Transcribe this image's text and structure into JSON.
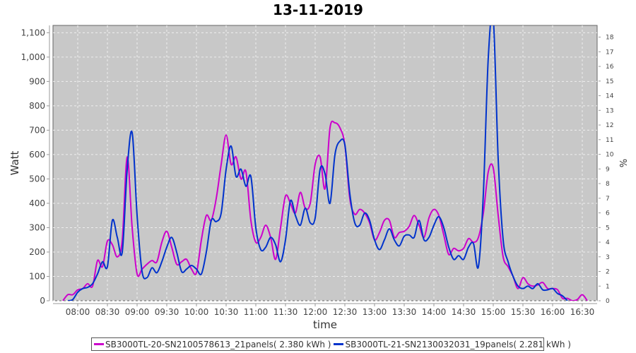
{
  "chart_data": {
    "type": "line",
    "title": "13-11-2019",
    "xlabel": "time",
    "ylabel": "Watt",
    "y2label": "%",
    "xlim": [
      "07:35",
      "16:45"
    ],
    "ylim": [
      0,
      1130
    ],
    "y2lim": [
      0,
      18.8
    ],
    "grid": true,
    "legend_position": "bottom",
    "x_ticks": [
      "08:00",
      "08:30",
      "09:00",
      "09:30",
      "10:00",
      "10:30",
      "11:00",
      "11:30",
      "12:00",
      "12:30",
      "13:00",
      "13:30",
      "14:00",
      "14:30",
      "15:00",
      "15:30",
      "16:00",
      "16:30"
    ],
    "y_ticks": [
      "0",
      "100",
      "200",
      "300",
      "400",
      "500",
      "600",
      "700",
      "800",
      "900",
      "1,000",
      "1,100"
    ],
    "y2_ticks": [
      "0",
      "1",
      "2",
      "3",
      "4",
      "5",
      "6",
      "7",
      "8",
      "9",
      "10",
      "11",
      "12",
      "13",
      "14",
      "15",
      "16",
      "17",
      "18"
    ],
    "series": [
      {
        "name": "SB3000TL-20-SN2100578613_21panels( 2.380 kWh )",
        "color": "#cc00cc",
        "start": "07:45",
        "interval_min": 5,
        "values": [
          0,
          25,
          25,
          45,
          50,
          70,
          60,
          165,
          140,
          245,
          230,
          180,
          250,
          590,
          300,
          110,
          130,
          150,
          165,
          160,
          240,
          285,
          220,
          150,
          160,
          170,
          130,
          115,
          250,
          350,
          330,
          420,
          560,
          680,
          560,
          590,
          500,
          530,
          330,
          240,
          260,
          310,
          260,
          170,
          300,
          430,
          400,
          360,
          445,
          380,
          400,
          560,
          590,
          460,
          710,
          730,
          710,
          640,
          420,
          355,
          375,
          360,
          320,
          250,
          280,
          330,
          330,
          260,
          280,
          285,
          305,
          350,
          310,
          260,
          340,
          375,
          350,
          270,
          190,
          215,
          205,
          215,
          255,
          240,
          260,
          360,
          530,
          545,
          350,
          180,
          140,
          100,
          50,
          95,
          70,
          60,
          65,
          75,
          50,
          50,
          45,
          10,
          10,
          0,
          5,
          25,
          0
        ]
      },
      {
        "name": "SB3000TL-21-SN2130032031_19panels( 2.281 kWh )",
        "color": "#0033cc",
        "start": "07:50",
        "interval_min": 5,
        "values": [
          0,
          5,
          35,
          50,
          55,
          70,
          110,
          160,
          140,
          330,
          260,
          200,
          540,
          690,
          350,
          120,
          95,
          135,
          115,
          160,
          220,
          260,
          200,
          120,
          130,
          145,
          130,
          110,
          200,
          330,
          325,
          360,
          540,
          635,
          510,
          540,
          470,
          510,
          300,
          210,
          220,
          260,
          230,
          160,
          250,
          410,
          350,
          310,
          380,
          320,
          340,
          540,
          520,
          400,
          600,
          655,
          640,
          440,
          320,
          310,
          360,
          330,
          250,
          210,
          250,
          295,
          250,
          225,
          265,
          270,
          260,
          330,
          250,
          260,
          310,
          345,
          300,
          220,
          170,
          185,
          170,
          220,
          235,
          140,
          440,
          1000,
          1160,
          580,
          250,
          160,
          100,
          60,
          50,
          60,
          50,
          70,
          45,
          45,
          50,
          30,
          20,
          0
        ]
      }
    ]
  }
}
